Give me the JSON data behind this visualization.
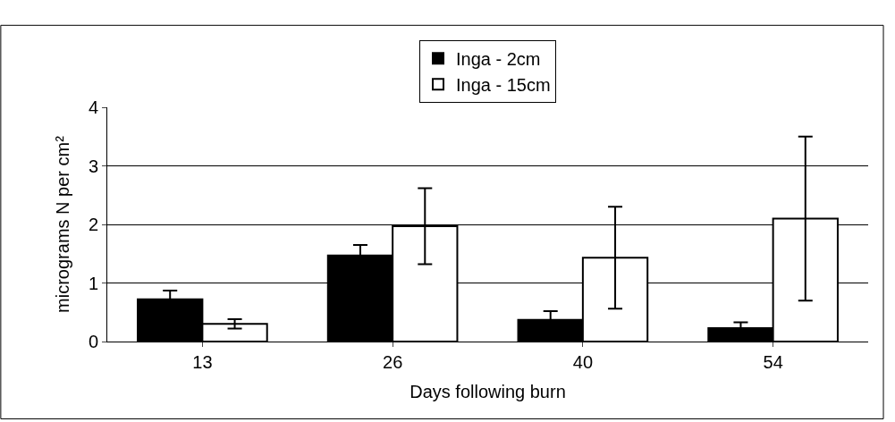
{
  "chart_data": {
    "type": "bar",
    "xlabel": "Days following burn",
    "ylabel": "micrograms N per cm²",
    "categories": [
      "13",
      "26",
      "40",
      "54"
    ],
    "series": [
      {
        "name": "Inga - 2cm",
        "color": "#000000",
        "values": [
          0.72,
          1.47,
          0.37,
          0.23
        ],
        "errors": [
          0.15,
          0.18,
          0.15,
          0.1
        ]
      },
      {
        "name": "Inga - 15cm",
        "color": "#ffffff",
        "values": [
          0.3,
          1.97,
          1.43,
          2.1
        ],
        "errors": [
          0.08,
          0.65,
          0.87,
          1.4
        ]
      }
    ],
    "ylim": [
      0,
      4
    ],
    "yticks": [
      0,
      1,
      2,
      3,
      4
    ],
    "grid": "y",
    "legend": "top"
  }
}
